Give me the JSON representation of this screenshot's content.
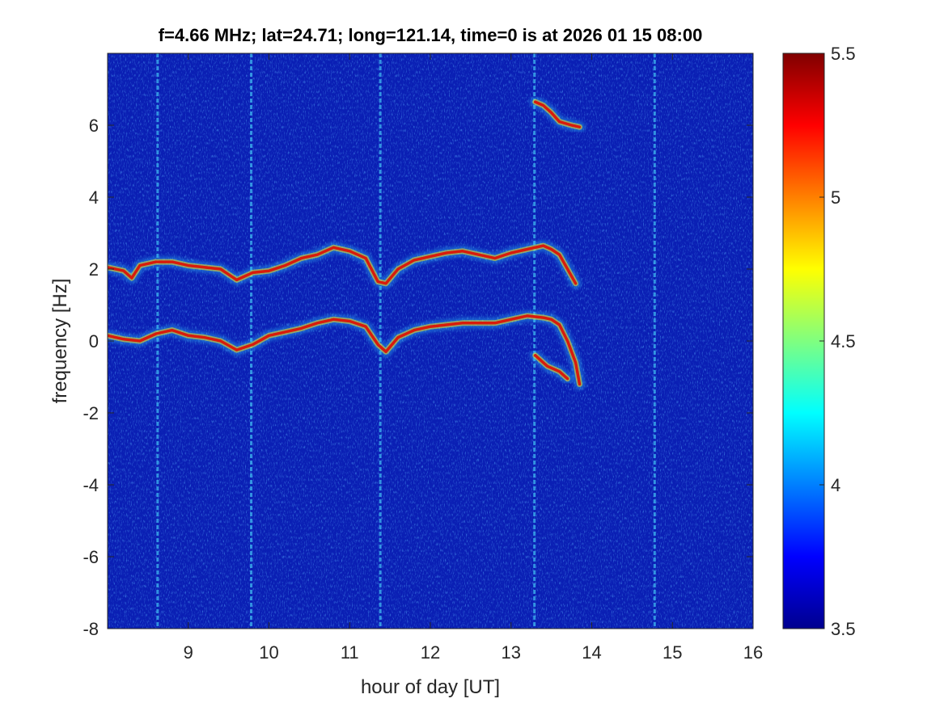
{
  "chart_data": {
    "type": "heatmap",
    "title": "f=4.66 MHz;  lat=24.71; long=121.14, time=0 is at 2026 01 15 08:00",
    "xlabel": "hour of day [UT]",
    "ylabel": "frequency [Hz]",
    "xlim": [
      8,
      16
    ],
    "ylim": [
      -8,
      8
    ],
    "xticks": [
      9,
      10,
      11,
      12,
      13,
      14,
      15,
      16
    ],
    "yticks": [
      -8,
      -6,
      -4,
      -2,
      0,
      2,
      4,
      6
    ],
    "colorbar": {
      "colormap": "jet",
      "clim": [
        3.5,
        5.5
      ],
      "ticks": [
        3.5,
        4,
        4.5,
        5,
        5.5
      ]
    },
    "background_level": 3.6,
    "vertical_interference_lines_hours": [
      8.62,
      9.78,
      11.38,
      13.29,
      14.78
    ],
    "traces": [
      {
        "points": [
          [
            8.0,
            2.05
          ],
          [
            8.2,
            1.95
          ],
          [
            8.3,
            1.75
          ],
          [
            8.4,
            2.1
          ],
          [
            8.6,
            2.2
          ],
          [
            8.8,
            2.2
          ],
          [
            9.0,
            2.1
          ],
          [
            9.2,
            2.05
          ],
          [
            9.4,
            2.0
          ],
          [
            9.5,
            1.85
          ],
          [
            9.6,
            1.7
          ],
          [
            9.8,
            1.9
          ],
          [
            10.0,
            1.95
          ],
          [
            10.2,
            2.1
          ],
          [
            10.4,
            2.3
          ],
          [
            10.6,
            2.4
          ],
          [
            10.8,
            2.6
          ],
          [
            11.0,
            2.5
          ],
          [
            11.2,
            2.3
          ],
          [
            11.35,
            1.65
          ],
          [
            11.45,
            1.6
          ],
          [
            11.6,
            2.0
          ],
          [
            11.8,
            2.25
          ],
          [
            12.0,
            2.35
          ],
          [
            12.2,
            2.45
          ],
          [
            12.4,
            2.5
          ],
          [
            12.6,
            2.4
          ],
          [
            12.8,
            2.3
          ],
          [
            13.0,
            2.45
          ],
          [
            13.2,
            2.55
          ],
          [
            13.4,
            2.65
          ],
          [
            13.5,
            2.55
          ],
          [
            13.6,
            2.4
          ],
          [
            13.7,
            2.0
          ],
          [
            13.8,
            1.6
          ]
        ]
      },
      {
        "points": [
          [
            8.0,
            0.15
          ],
          [
            8.2,
            0.05
          ],
          [
            8.4,
            0.0
          ],
          [
            8.6,
            0.2
          ],
          [
            8.8,
            0.3
          ],
          [
            9.0,
            0.15
          ],
          [
            9.2,
            0.1
          ],
          [
            9.4,
            0.0
          ],
          [
            9.6,
            -0.25
          ],
          [
            9.8,
            -0.1
          ],
          [
            10.0,
            0.15
          ],
          [
            10.2,
            0.25
          ],
          [
            10.4,
            0.35
          ],
          [
            10.6,
            0.5
          ],
          [
            10.8,
            0.6
          ],
          [
            11.0,
            0.55
          ],
          [
            11.2,
            0.4
          ],
          [
            11.35,
            -0.1
          ],
          [
            11.45,
            -0.3
          ],
          [
            11.6,
            0.1
          ],
          [
            11.8,
            0.3
          ],
          [
            12.0,
            0.4
          ],
          [
            12.2,
            0.45
          ],
          [
            12.4,
            0.5
          ],
          [
            12.6,
            0.5
          ],
          [
            12.8,
            0.5
          ],
          [
            13.0,
            0.6
          ],
          [
            13.2,
            0.7
          ],
          [
            13.4,
            0.65
          ],
          [
            13.5,
            0.6
          ],
          [
            13.6,
            0.45
          ],
          [
            13.7,
            0.0
          ],
          [
            13.8,
            -0.6
          ],
          [
            13.85,
            -1.2
          ]
        ]
      },
      {
        "points": [
          [
            13.3,
            -0.4
          ],
          [
            13.45,
            -0.7
          ],
          [
            13.6,
            -0.85
          ],
          [
            13.7,
            -1.05
          ]
        ]
      },
      {
        "points": [
          [
            13.3,
            6.65
          ],
          [
            13.4,
            6.55
          ],
          [
            13.5,
            6.35
          ],
          [
            13.6,
            6.1
          ],
          [
            13.75,
            6.0
          ],
          [
            13.85,
            5.95
          ]
        ]
      }
    ]
  }
}
